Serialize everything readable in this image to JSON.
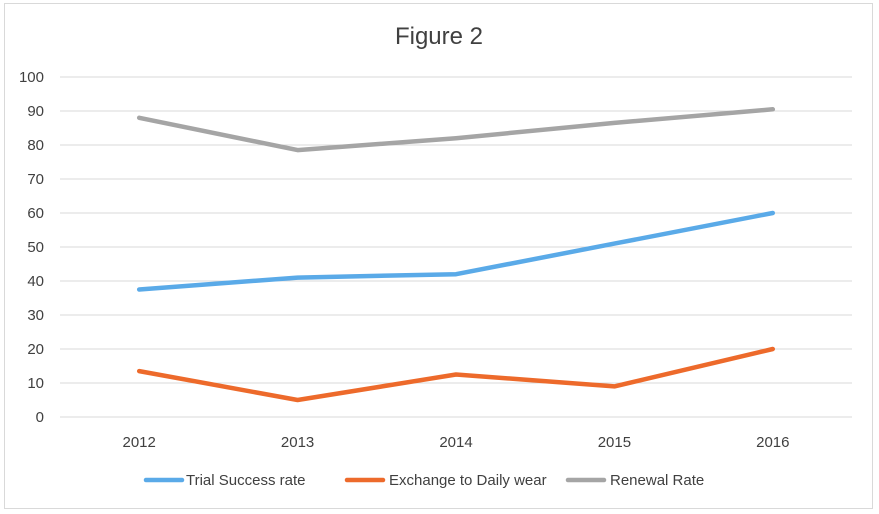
{
  "chart_data": {
    "type": "line",
    "title": "Figure 2",
    "xlabel": "",
    "ylabel": "",
    "categories": [
      "2012",
      "2013",
      "2014",
      "2015",
      "2016"
    ],
    "ylim": [
      0,
      100
    ],
    "yticks": [
      0,
      10,
      20,
      30,
      40,
      50,
      60,
      70,
      80,
      90,
      100
    ],
    "grid": true,
    "legend_position": "bottom",
    "series": [
      {
        "name": "Trial Success rate",
        "color": "#5aaae8",
        "values": [
          37.5,
          41,
          42,
          51,
          60
        ]
      },
      {
        "name": "Exchange to Daily wear",
        "color": "#ed6a2b",
        "values": [
          13.5,
          5,
          12.5,
          9,
          20
        ]
      },
      {
        "name": "Renewal Rate",
        "color": "#a5a5a5",
        "values": [
          88,
          78.5,
          82,
          86.5,
          90.5
        ]
      }
    ]
  }
}
